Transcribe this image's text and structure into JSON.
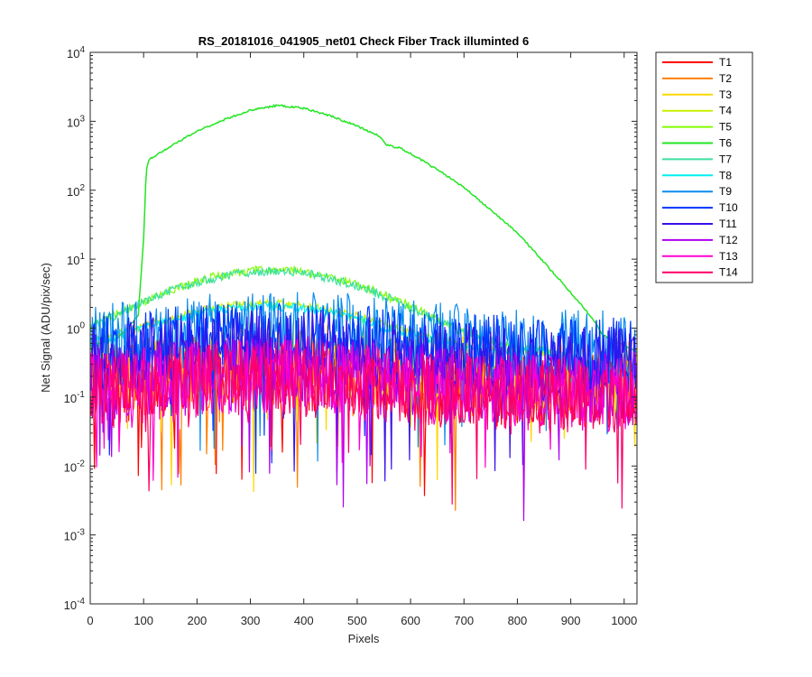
{
  "chart_data": {
    "type": "line",
    "title": "RS_20181016_041905_net01   Check Fiber     Track illuminted 6",
    "xlabel": "Pixels",
    "ylabel": "Net Signal (ADU/pix/sec)",
    "xlim": [
      0,
      1024
    ],
    "ylim": [
      0.0001,
      10000
    ],
    "yscale": "log",
    "x_ticks": [
      0,
      100,
      200,
      300,
      400,
      500,
      600,
      700,
      800,
      900,
      1000
    ],
    "y_tick_exponents": [
      -4,
      -3,
      -2,
      -1,
      0,
      1,
      2,
      3,
      4
    ],
    "legend_position": "outside-top-right",
    "grid": false,
    "series": [
      {
        "name": "T1",
        "color": "#ff0000",
        "profile": "noise",
        "base": 0.12
      },
      {
        "name": "T2",
        "color": "#ff7f00",
        "profile": "noise",
        "base": 0.15
      },
      {
        "name": "T3",
        "color": "#ffd700",
        "profile": "noise",
        "base": 0.2
      },
      {
        "name": "T4",
        "color": "#c8f000",
        "profile": "bump",
        "peak": 2.3,
        "peak_x": 330
      },
      {
        "name": "T5",
        "color": "#7fff00",
        "profile": "bump",
        "peak": 7.0,
        "peak_x": 340
      },
      {
        "name": "T6",
        "color": "#21e621",
        "profile": "illuminated",
        "x": [
          0,
          50,
          90,
          100,
          105,
          110,
          150,
          200,
          250,
          300,
          350,
          400,
          450,
          500,
          540,
          555,
          565,
          580,
          600,
          650,
          700,
          750,
          800,
          850,
          900,
          940,
          960,
          1000,
          1024
        ],
        "y": [
          0.55,
          0.7,
          1.5,
          20,
          200,
          280,
          430,
          720,
          1050,
          1450,
          1700,
          1550,
          1200,
          850,
          620,
          460,
          430,
          410,
          340,
          200,
          110,
          52,
          24,
          9,
          3.3,
          1.4,
          0.8,
          0.55,
          0.45
        ]
      },
      {
        "name": "T7",
        "color": "#3de0a0",
        "profile": "bump",
        "peak": 6.7,
        "peak_x": 340
      },
      {
        "name": "T8",
        "color": "#00f0f0",
        "profile": "bump",
        "peak": 2.1,
        "peak_x": 330
      },
      {
        "name": "T9",
        "color": "#0a8cf0",
        "profile": "noise",
        "base": 0.55
      },
      {
        "name": "T10",
        "color": "#0033ff",
        "profile": "noise",
        "base": 0.4
      },
      {
        "name": "T11",
        "color": "#3a10e8",
        "profile": "noise",
        "base": 0.3
      },
      {
        "name": "T12",
        "color": "#b000f0",
        "profile": "noise",
        "base": 0.13
      },
      {
        "name": "T13",
        "color": "#ff00d0",
        "profile": "noise",
        "base": 0.11
      },
      {
        "name": "T14",
        "color": "#ff0066",
        "profile": "noise",
        "base": 0.1
      }
    ]
  }
}
